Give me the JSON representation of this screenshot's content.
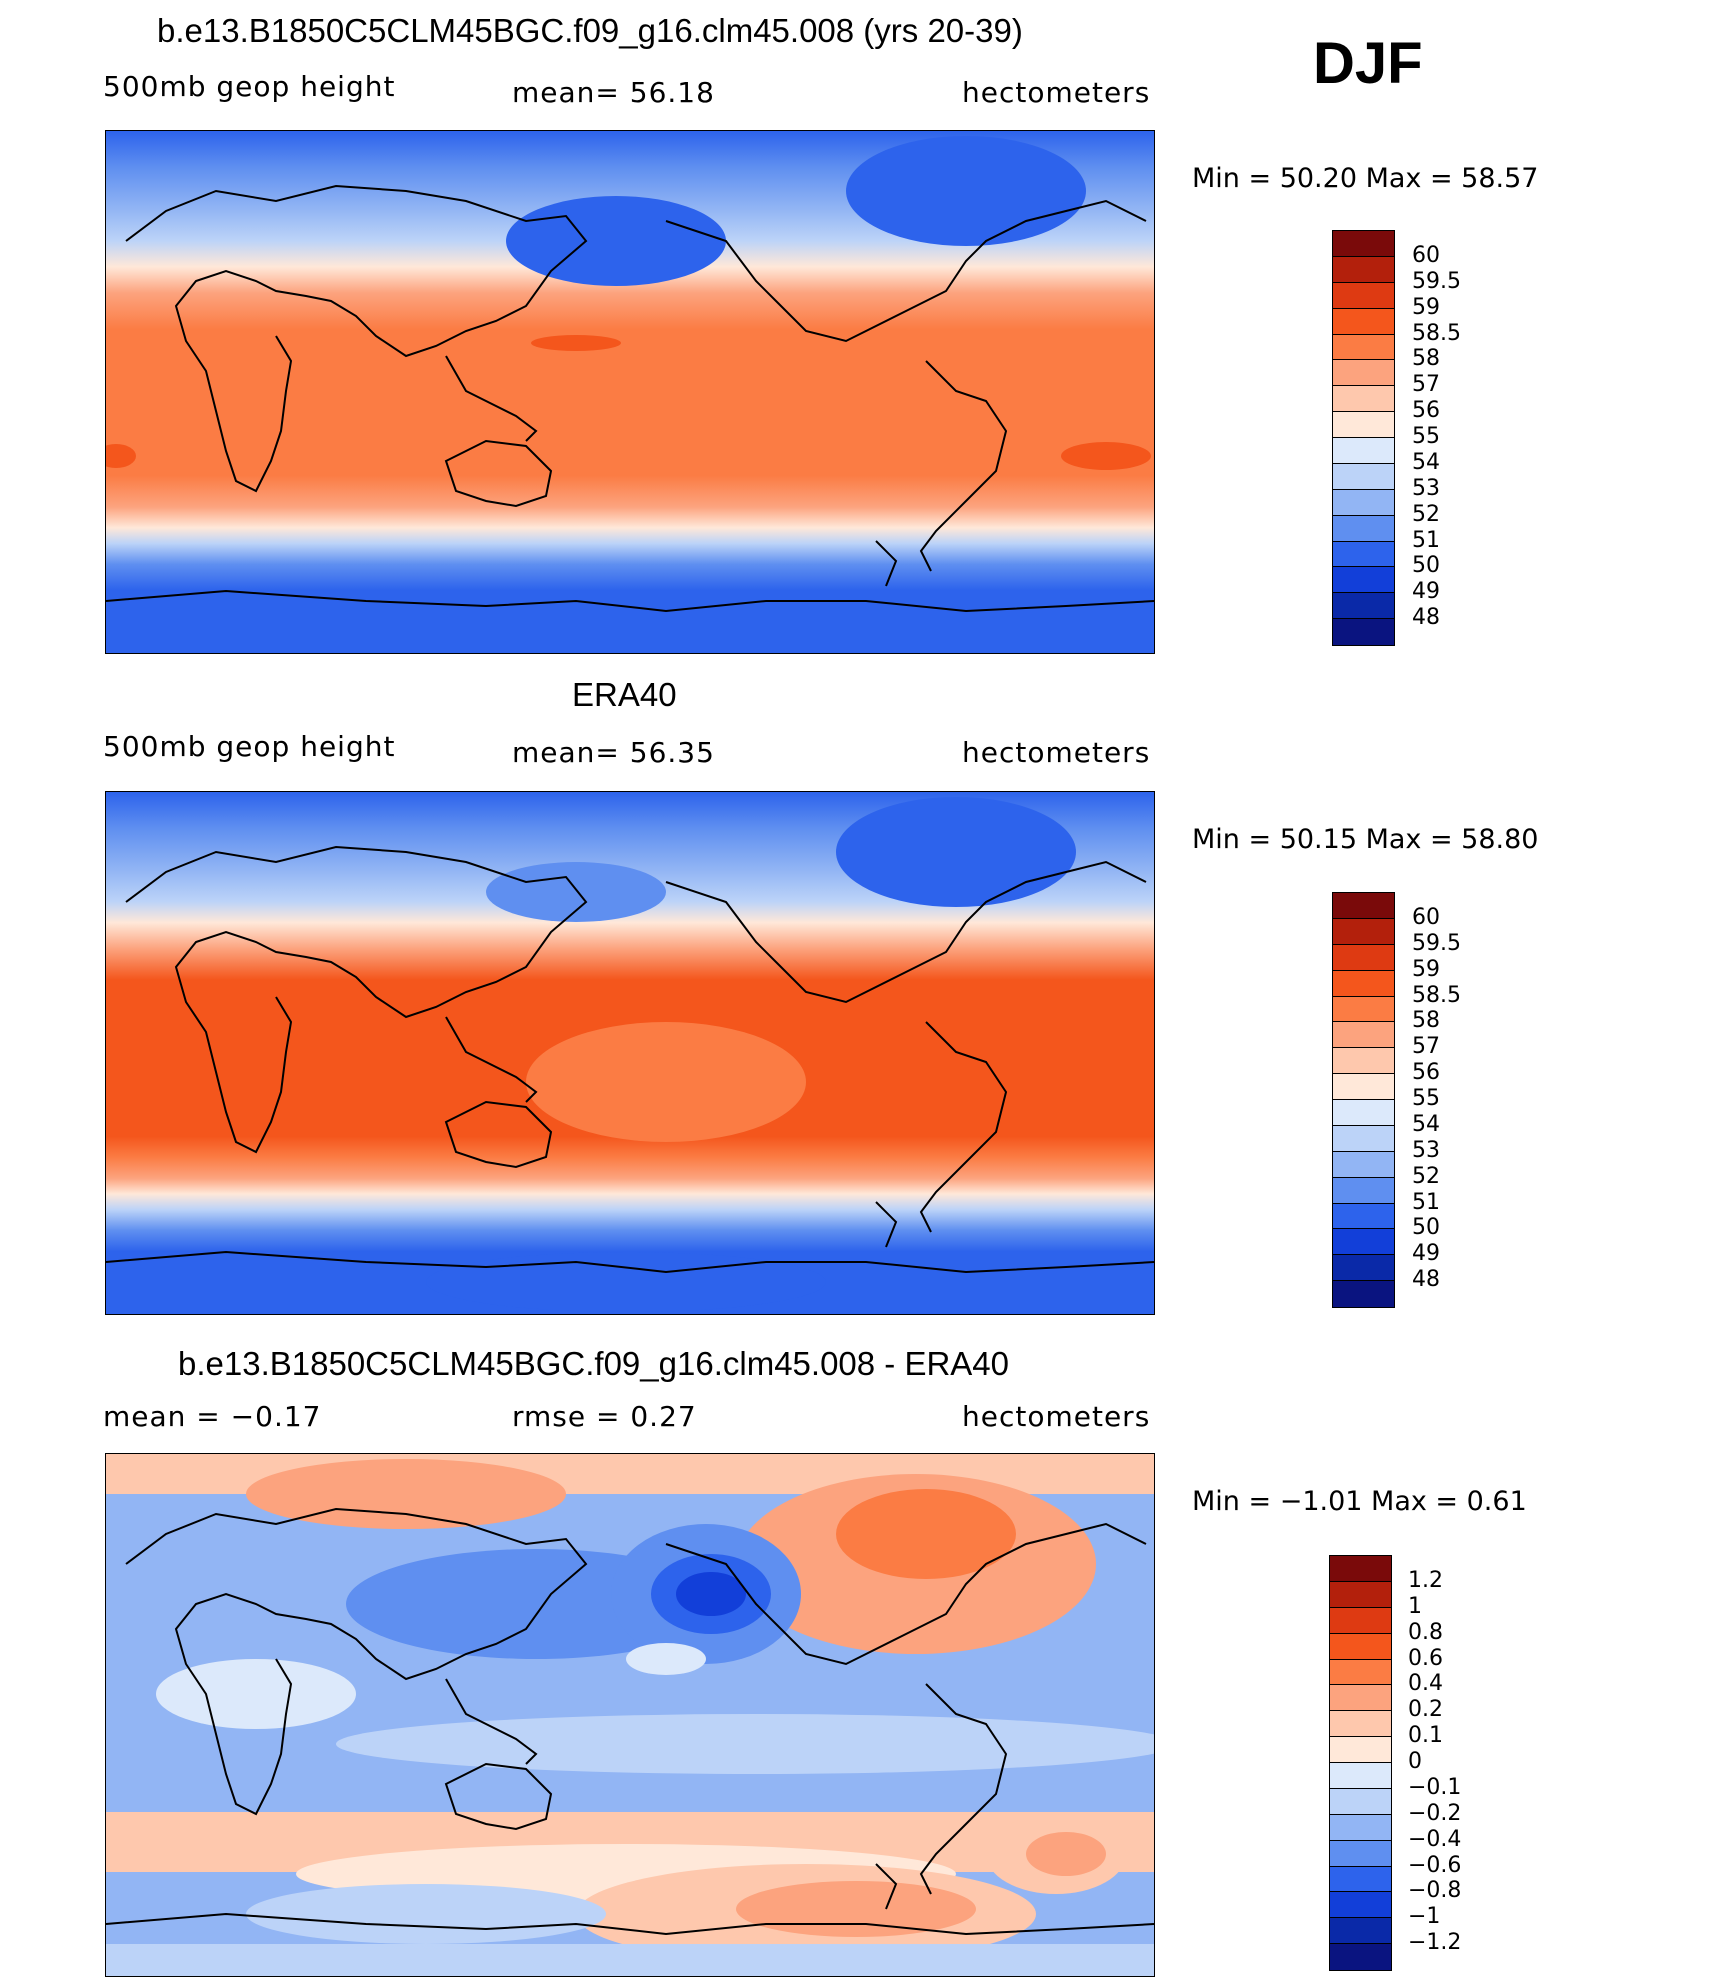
{
  "season": "DJF",
  "panels": [
    {
      "title": "b.e13.B1850C5CLM45BGC.f09_g16.clm45.008 (yrs 20-39)",
      "left_label": "500mb  geop  height",
      "mid_label": "mean=   56.18",
      "right_label": "hectometers",
      "minmax": "Min  =    50.20  Max  =    58.57",
      "colorbar_labels": [
        "60",
        "59.5",
        "59",
        "58.5",
        "58",
        "57",
        "56",
        "55",
        "54",
        "53",
        "52",
        "51",
        "50",
        "49",
        "48"
      ]
    },
    {
      "title": "ERA40",
      "left_label": "500mb  geop  height",
      "mid_label": "mean=   56.35",
      "right_label": "hectometers",
      "minmax": "Min  =    50.15  Max  =    58.80",
      "colorbar_labels": [
        "60",
        "59.5",
        "59",
        "58.5",
        "58",
        "57",
        "56",
        "55",
        "54",
        "53",
        "52",
        "51",
        "50",
        "49",
        "48"
      ]
    },
    {
      "title": "b.e13.B1850C5CLM45BGC.f09_g16.clm45.008 - ERA40",
      "left_label": "mean  =    −0.17",
      "mid_label": "rmse  =     0.27",
      "right_label": "hectometers",
      "minmax": "Min  =    −1.01  Max  =     0.61",
      "colorbar_labels": [
        "1.2",
        "1",
        "0.8",
        "0.6",
        "0.4",
        "0.2",
        "0.1",
        "0",
        "−0.1",
        "−0.2",
        "−0.4",
        "−0.6",
        "−0.8",
        "−1",
        "−1.2"
      ]
    }
  ],
  "colors": {
    "scale": [
      "#7a0a0a",
      "#b3200c",
      "#de3a12",
      "#f4561c",
      "#fb7c44",
      "#fca37e",
      "#fec8ad",
      "#ffe8d9",
      "#dce9fb",
      "#bcd3f8",
      "#92b5f4",
      "#5f8ff0",
      "#2d63ec",
      "#123fd9",
      "#0a29a8",
      "#0a1480"
    ],
    "coast": "#000000"
  }
}
